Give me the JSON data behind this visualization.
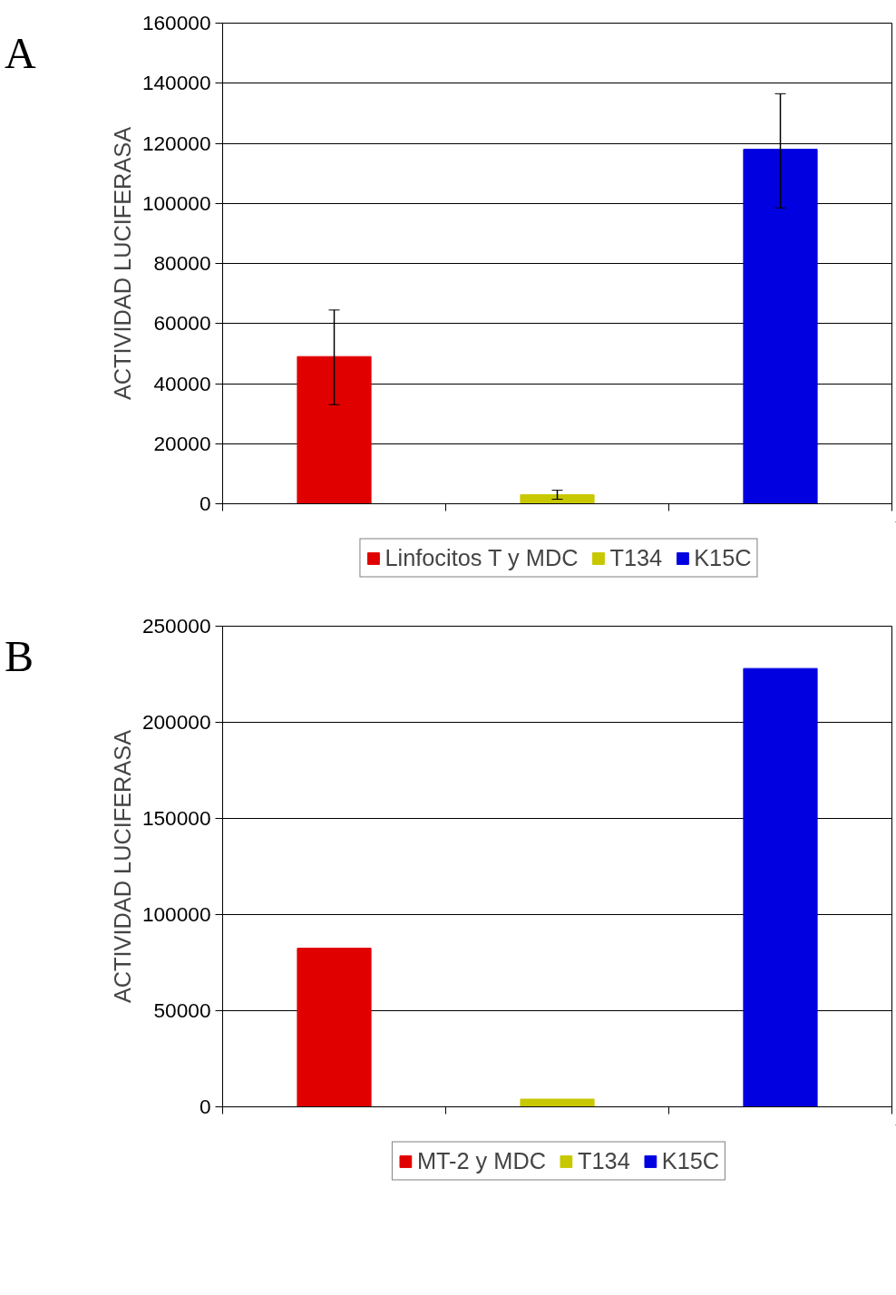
{
  "chart_data": [
    {
      "type": "bar",
      "annotations": [
        "A"
      ],
      "ylabel": "ACTIVIDAD LUCIFERASA",
      "categories": [
        null,
        null,
        null
      ],
      "series": [
        {
          "name": "Linfocitos T y MDC",
          "color": "#e00000",
          "values": [
            49000,
            null,
            null
          ],
          "errors": [
            [
              33000,
              64500
            ],
            null,
            null
          ]
        },
        {
          "name": "T134",
          "color": "#c8c800",
          "values": [
            null,
            3000,
            null
          ],
          "errors": [
            null,
            [
              1500,
              4500
            ],
            null
          ]
        },
        {
          "name": "K15C",
          "color": "#0000e0",
          "values": [
            null,
            null,
            118000
          ],
          "errors": [
            null,
            null,
            [
              98500,
              136500
            ]
          ]
        }
      ],
      "ylim": [
        0,
        160000
      ],
      "yticks": [
        0,
        20000,
        40000,
        60000,
        80000,
        100000,
        120000,
        140000,
        160000
      ],
      "grid": "y",
      "legend": "bottom",
      "tick_labels": "y"
    },
    {
      "type": "bar",
      "annotations": [
        "B"
      ],
      "ylabel": "ACTIVIDAD LUCIFERASA",
      "categories": [
        null,
        null,
        null
      ],
      "series": [
        {
          "name": "MT-2 y MDC",
          "color": "#e00000",
          "values": [
            82500,
            null,
            null
          ]
        },
        {
          "name": "T134",
          "color": "#c8c800",
          "values": [
            null,
            4000,
            null
          ]
        },
        {
          "name": "K15C",
          "color": "#0000e0",
          "values": [
            null,
            null,
            228000
          ]
        }
      ],
      "ylim": [
        0,
        250000
      ],
      "yticks": [
        0,
        50000,
        100000,
        150000,
        200000,
        250000
      ],
      "grid": "y",
      "legend": "bottom",
      "tick_labels": "y"
    }
  ]
}
